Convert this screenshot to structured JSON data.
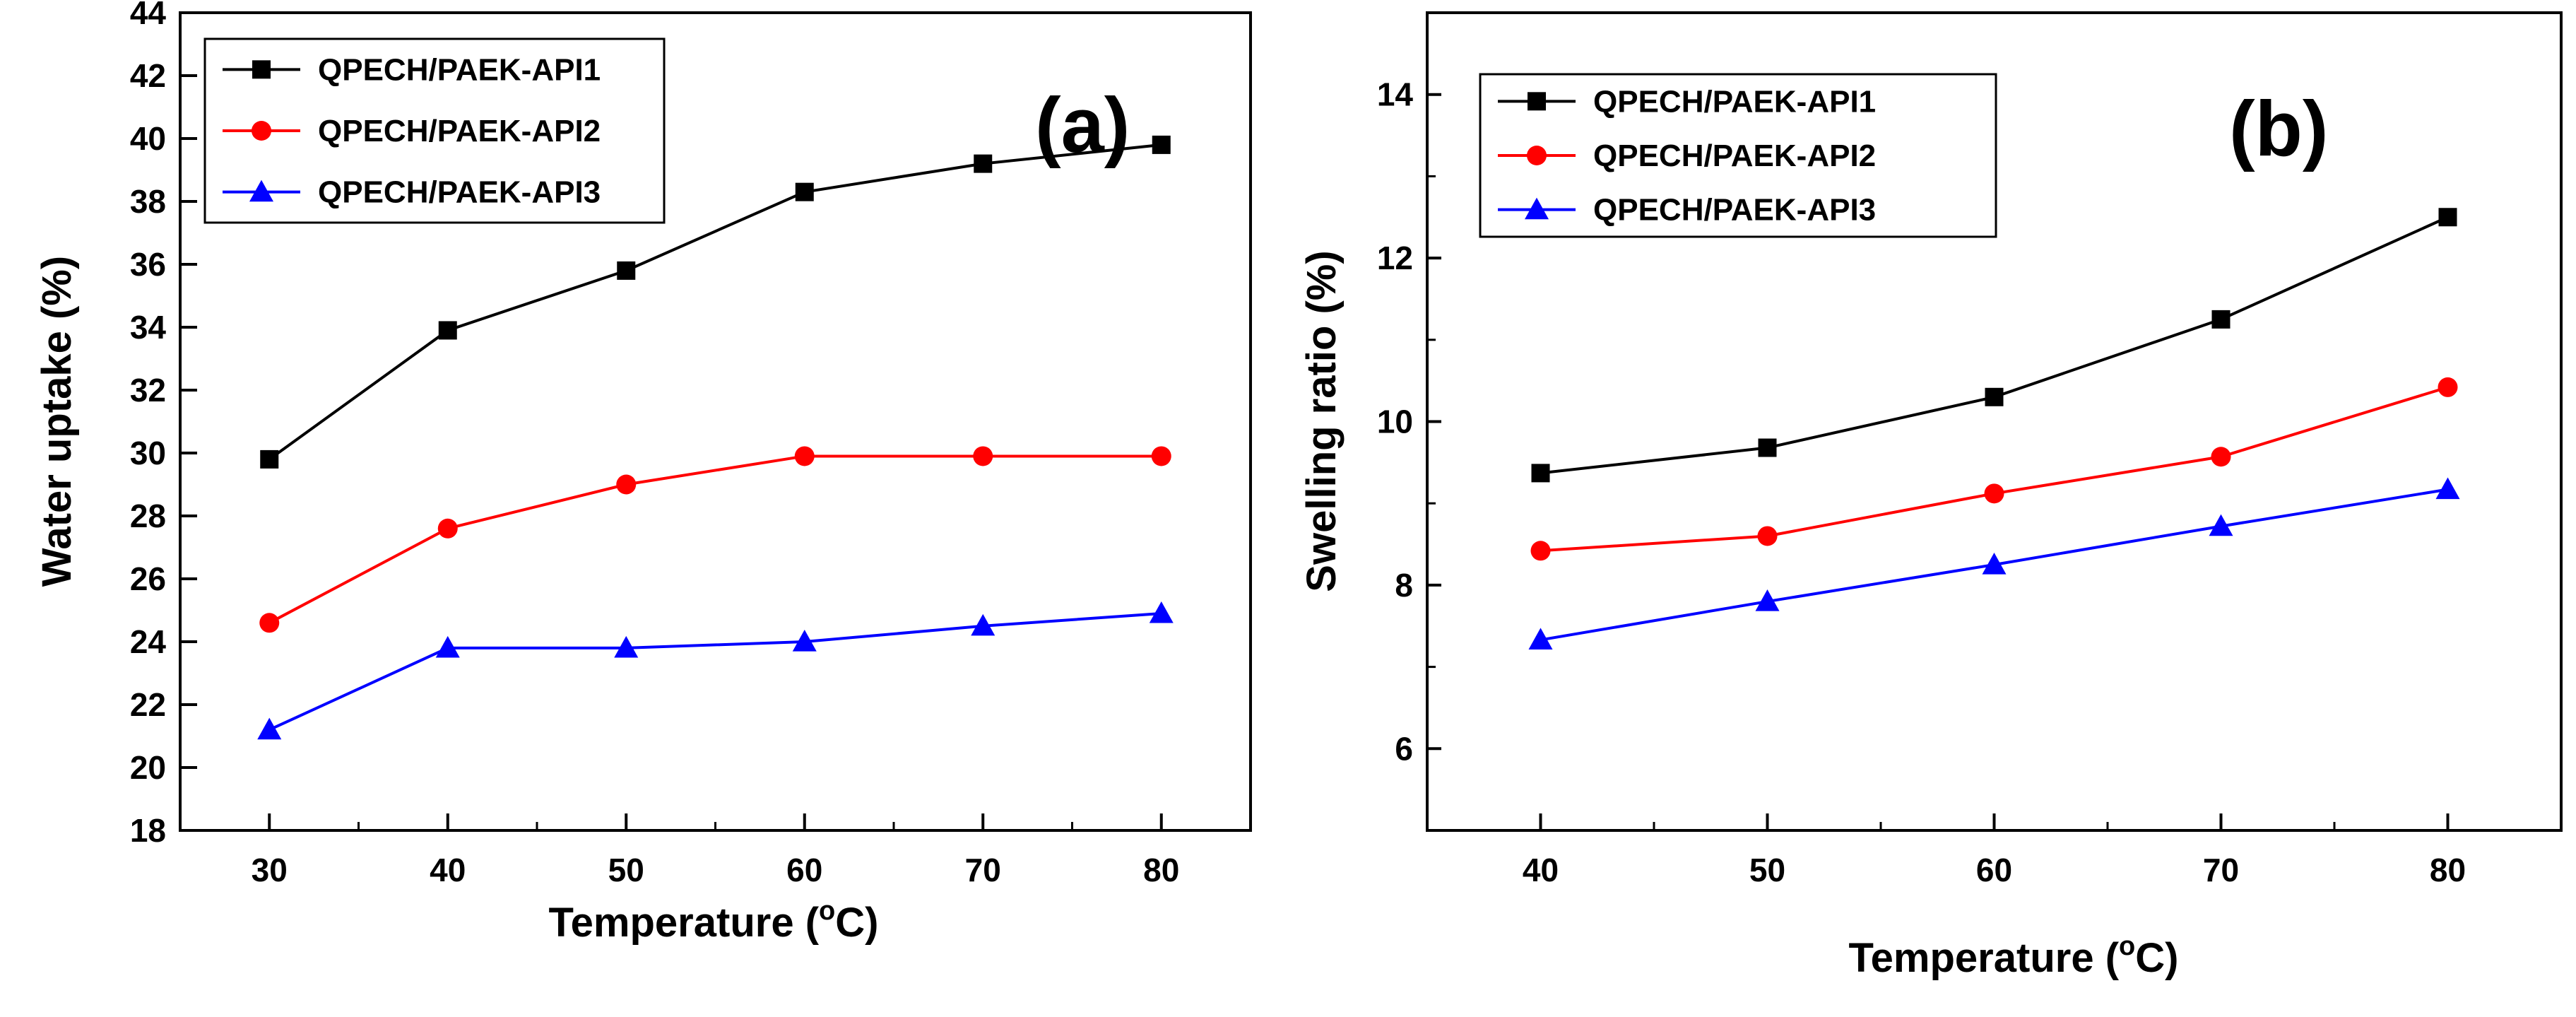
{
  "chart_data": [
    {
      "type": "line",
      "panel_label": "(a)",
      "title": "",
      "xlabel": "Temperature (",
      "xlabel_degree": "o",
      "xlabel_unit": "C)",
      "ylabel": "Water uptake (%)",
      "xlim": [
        25,
        85
      ],
      "ylim": [
        18,
        44
      ],
      "xticks": [
        30,
        40,
        50,
        60,
        70,
        80
      ],
      "yticks": [
        18,
        20,
        22,
        24,
        26,
        28,
        30,
        32,
        34,
        36,
        38,
        40,
        42,
        44
      ],
      "legend_position": "top-left",
      "x": [
        30,
        40,
        50,
        60,
        70,
        80
      ],
      "series": [
        {
          "name": "QPECH/PAEK-API1",
          "color": "#000000",
          "marker": "square",
          "values": [
            29.8,
            33.9,
            35.8,
            38.3,
            39.2,
            39.8
          ]
        },
        {
          "name": "QPECH/PAEK-API2",
          "color": "#ff0000",
          "marker": "circle",
          "values": [
            24.6,
            27.6,
            29.0,
            29.9,
            29.9,
            29.9
          ]
        },
        {
          "name": "QPECH/PAEK-API3",
          "color": "#0000ff",
          "marker": "triangle",
          "values": [
            21.2,
            23.8,
            23.8,
            24.0,
            24.5,
            24.9
          ]
        }
      ]
    },
    {
      "type": "line",
      "panel_label": "(b)",
      "title": "",
      "xlabel": "Temperature (",
      "xlabel_degree": "o",
      "xlabel_unit": "C)",
      "ylabel": "Swelling ratio (%)",
      "xlim": [
        35,
        85
      ],
      "ylim": [
        5,
        15
      ],
      "xticks": [
        40,
        50,
        60,
        70,
        80
      ],
      "yticks": [
        6,
        8,
        10,
        12,
        14
      ],
      "legend_position": "top-left",
      "x": [
        40,
        50,
        60,
        70,
        80
      ],
      "series": [
        {
          "name": "QPECH/PAEK-API1",
          "color": "#000000",
          "marker": "square",
          "values": [
            9.37,
            9.68,
            10.3,
            11.25,
            12.5
          ]
        },
        {
          "name": "QPECH/PAEK-API2",
          "color": "#ff0000",
          "marker": "circle",
          "values": [
            8.42,
            8.6,
            9.12,
            9.57,
            10.42
          ]
        },
        {
          "name": "QPECH/PAEK-API3",
          "color": "#0000ff",
          "marker": "triangle",
          "values": [
            7.33,
            7.8,
            8.25,
            8.72,
            9.17
          ]
        }
      ]
    }
  ]
}
